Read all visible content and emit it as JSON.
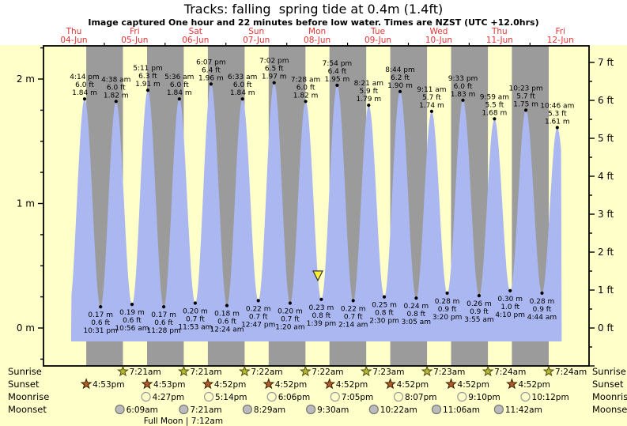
{
  "title": "Tracks: falling  spring tide at 0.4m (1.4ft)",
  "subtitle": "Image captured One hour and 22 minutes before low water. Times are NZST (UTC +12.0hrs)",
  "chart_data": {
    "type": "area",
    "title": "Tracks: falling  spring tide at 0.4m (1.4ft)",
    "timezone": "NZST (UTC +12.0hrs)",
    "x_axis": {
      "days": [
        {
          "weekday": "Thu",
          "date": "04-Jun"
        },
        {
          "weekday": "Fri",
          "date": "05-Jun"
        },
        {
          "weekday": "Sat",
          "date": "06-Jun"
        },
        {
          "weekday": "Sun",
          "date": "07-Jun"
        },
        {
          "weekday": "Mon",
          "date": "08-Jun"
        },
        {
          "weekday": "Tue",
          "date": "09-Jun"
        },
        {
          "weekday": "Wed",
          "date": "10-Jun"
        },
        {
          "weekday": "Thu",
          "date": "11-Jun"
        },
        {
          "weekday": "Fri",
          "date": "12-Jun"
        }
      ]
    },
    "y_axis_left": {
      "unit": "m",
      "tick_labels": [
        "0 m",
        "1 m",
        "2 m"
      ],
      "range_m": [
        -0.31,
        2.27
      ]
    },
    "y_axis_right": {
      "unit": "ft",
      "tick_labels": [
        "0 ft",
        "1 ft",
        "2 ft",
        "3 ft",
        "4 ft",
        "5 ft",
        "6 ft",
        "7 ft"
      ]
    },
    "high_tides": [
      {
        "day": 4,
        "time": "4:14 pm",
        "ft": "6.0 ft",
        "m": "1.84 m"
      },
      {
        "day": 5,
        "time": "4:38 am",
        "ft": "6.0 ft",
        "m": "1.82 m"
      },
      {
        "day": 5,
        "time": "5:11 pm",
        "ft": "6.3 ft",
        "m": "1.91 m"
      },
      {
        "day": 6,
        "time": "5:36 am",
        "ft": "6.0 ft",
        "m": "1.84 m"
      },
      {
        "day": 6,
        "time": "6:07 pm",
        "ft": "6.4 ft",
        "m": "1.96 m"
      },
      {
        "day": 7,
        "time": "6:33 am",
        "ft": "6.0 ft",
        "m": "1.84 m"
      },
      {
        "day": 7,
        "time": "7:02 pm",
        "ft": "6.5 ft",
        "m": "1.97 m"
      },
      {
        "day": 8,
        "time": "7:28 am",
        "ft": "6.0 ft",
        "m": "1.82 m"
      },
      {
        "day": 8,
        "time": "7:54 pm",
        "ft": "6.4 ft",
        "m": "1.95 m"
      },
      {
        "day": 9,
        "time": "8:21 am",
        "ft": "5.9 ft",
        "m": "1.79 m"
      },
      {
        "day": 9,
        "time": "8:44 pm",
        "ft": "6.2 ft",
        "m": "1.90 m"
      },
      {
        "day": 10,
        "time": "9:11 am",
        "ft": "5.7 ft",
        "m": "1.74 m"
      },
      {
        "day": 10,
        "time": "9:33 pm",
        "ft": "6.0 ft",
        "m": "1.83 m"
      },
      {
        "day": 11,
        "time": "9:59 am",
        "ft": "5.5 ft",
        "m": "1.68 m"
      },
      {
        "day": 11,
        "time": "10:23 pm",
        "ft": "5.7 ft",
        "m": "1.75 m"
      },
      {
        "day": 12,
        "time": "10:46 am",
        "ft": "5.3 ft",
        "m": "1.61 m"
      }
    ],
    "low_tides": [
      {
        "day": 4,
        "time": "10:31 pm",
        "ft": "0.6 ft",
        "m": "0.17 m"
      },
      {
        "day": 5,
        "time": "10:56 am",
        "ft": "0.6 ft",
        "m": "0.19 m"
      },
      {
        "day": 5,
        "time": "11:28 pm",
        "ft": "0.6 ft",
        "m": "0.17 m"
      },
      {
        "day": 6,
        "time": "11:53 am",
        "ft": "0.7 ft",
        "m": "0.20 m"
      },
      {
        "day": 7,
        "time": "12:24 am",
        "ft": "0.6 ft",
        "m": "0.18 m"
      },
      {
        "day": 7,
        "time": "12:47 pm",
        "ft": "0.7 ft",
        "m": "0.22 m"
      },
      {
        "day": 8,
        "time": "1:20 am",
        "ft": "0.7 ft",
        "m": "0.20 m"
      },
      {
        "day": 8,
        "time": "1:39 pm",
        "ft": "0.8 ft",
        "m": "0.23 m"
      },
      {
        "day": 9,
        "time": "2:14 am",
        "ft": "0.7 ft",
        "m": "0.22 m"
      },
      {
        "day": 9,
        "time": "2:30 pm",
        "ft": "0.8 ft",
        "m": "0.25 m"
      },
      {
        "day": 10,
        "time": "3:05 am",
        "ft": "0.8 ft",
        "m": "0.24 m"
      },
      {
        "day": 10,
        "time": "3:20 pm",
        "ft": "0.9 ft",
        "m": "0.28 m"
      },
      {
        "day": 11,
        "time": "3:55 am",
        "ft": "0.9 ft",
        "m": "0.26 m"
      },
      {
        "day": 11,
        "time": "4:10 pm",
        "ft": "1.0 ft",
        "m": "0.30 m"
      },
      {
        "day": 12,
        "time": "4:44 am",
        "ft": "0.9 ft",
        "m": "0.28 m"
      }
    ],
    "marker": {
      "day": 8,
      "time": "12:17 pm",
      "level_m": 0.42
    },
    "colors": {
      "day_band": "#ffffc9",
      "night_band": "#9b9b9b",
      "tide_fill": "#aab7f0",
      "label_red": "#e63434",
      "sunrise_star": "#b8b832",
      "sunset_star": "#b05f28",
      "moonrise_fill": "#ffffc9",
      "moonset_fill": "#bbbbbb",
      "marker": "#ffee33"
    }
  },
  "astro": {
    "row_labels": [
      "Sunrise",
      "Sunset",
      "Moonrise",
      "Moonset"
    ],
    "sunrise": [
      {
        "day": 5,
        "time": "7:21am"
      },
      {
        "day": 6,
        "time": "7:21am"
      },
      {
        "day": 7,
        "time": "7:22am"
      },
      {
        "day": 8,
        "time": "7:22am"
      },
      {
        "day": 9,
        "time": "7:23am"
      },
      {
        "day": 10,
        "time": "7:23am"
      },
      {
        "day": 11,
        "time": "7:24am"
      },
      {
        "day": 12,
        "time": "7:24am"
      }
    ],
    "sunset": [
      {
        "day": 4,
        "time": "4:53pm"
      },
      {
        "day": 5,
        "time": "4:53pm"
      },
      {
        "day": 6,
        "time": "4:52pm"
      },
      {
        "day": 7,
        "time": "4:52pm"
      },
      {
        "day": 8,
        "time": "4:52pm"
      },
      {
        "day": 9,
        "time": "4:52pm"
      },
      {
        "day": 10,
        "time": "4:52pm"
      },
      {
        "day": 11,
        "time": "4:52pm"
      }
    ],
    "moonrise": [
      {
        "day": 5,
        "time": "4:27pm"
      },
      {
        "day": 6,
        "time": "5:14pm"
      },
      {
        "day": 7,
        "time": "6:06pm"
      },
      {
        "day": 8,
        "time": "7:05pm"
      },
      {
        "day": 9,
        "time": "8:07pm"
      },
      {
        "day": 10,
        "time": "9:10pm"
      },
      {
        "day": 11,
        "time": "10:12pm"
      }
    ],
    "moonset": [
      {
        "day": 5,
        "time": "6:09am"
      },
      {
        "day": 6,
        "time": "7:21am"
      },
      {
        "day": 7,
        "time": "8:29am"
      },
      {
        "day": 8,
        "time": "9:30am"
      },
      {
        "day": 9,
        "time": "10:22am"
      },
      {
        "day": 10,
        "time": "11:06am"
      },
      {
        "day": 11,
        "time": "11:42am"
      }
    ],
    "full_moon": {
      "label": "Full Moon",
      "time": "7:12am",
      "day": 6
    }
  }
}
